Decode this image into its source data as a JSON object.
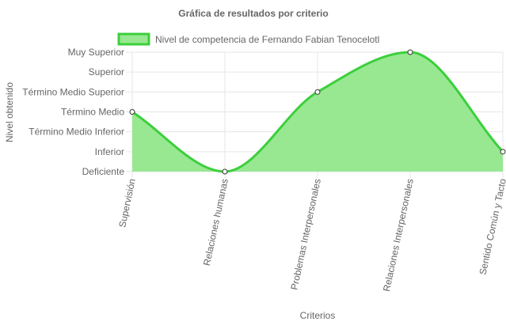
{
  "chart_data": {
    "type": "area",
    "title": "Gráfica de resultados por criterio",
    "xlabel": "Criterios",
    "ylabel": "Nivel obtenido",
    "y_levels": [
      "Deficiente",
      "Inferior",
      "Término Medio Inferior",
      "Término Medio",
      "Término Medio Superior",
      "Superior",
      "Muy Superior"
    ],
    "ylim": [
      0,
      6
    ],
    "categories": [
      "Supervisión",
      "Relaciones humanas",
      "Problemas Interpersonales",
      "Relaciones Interpersonales",
      "Sentido Común y Tacto"
    ],
    "series": [
      {
        "name": "Nivel de competencia de Fernando Fabian Tenocelotl",
        "values": [
          3,
          0,
          4,
          6,
          1
        ],
        "value_labels": [
          "Término Medio",
          "Deficiente",
          "Término Medio Superior",
          "Muy Superior",
          "Inferior"
        ]
      }
    ],
    "grid": true,
    "legend_position": "top",
    "colors": {
      "fill": "#98e892",
      "line": "#3ccf3c",
      "grid": "#e6e6e6",
      "point_fill": "#ffffff",
      "point_stroke": "#333333"
    }
  }
}
